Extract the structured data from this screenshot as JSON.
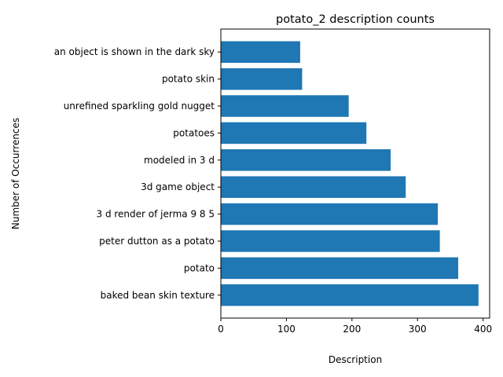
{
  "chart_data": {
    "type": "bar",
    "orientation": "horizontal",
    "title": "potato_2 description counts",
    "xlabel": "Description",
    "ylabel": "Number of Occurrences",
    "categories": [
      "baked bean skin texture",
      "potato",
      "peter dutton as a potato",
      "3 d render of jerma 9 8 5",
      "3d game object",
      "modeled in 3 d",
      "potatoes",
      "unrefined sparkling gold nugget",
      "potato skin",
      "an object is shown in the dark sky"
    ],
    "values": [
      393,
      362,
      334,
      331,
      282,
      259,
      222,
      195,
      124,
      121
    ],
    "xlim": [
      0,
      410
    ],
    "xticks": [
      0,
      100,
      200,
      300,
      400
    ],
    "grid": false,
    "bar_color": "#1f77b4"
  }
}
